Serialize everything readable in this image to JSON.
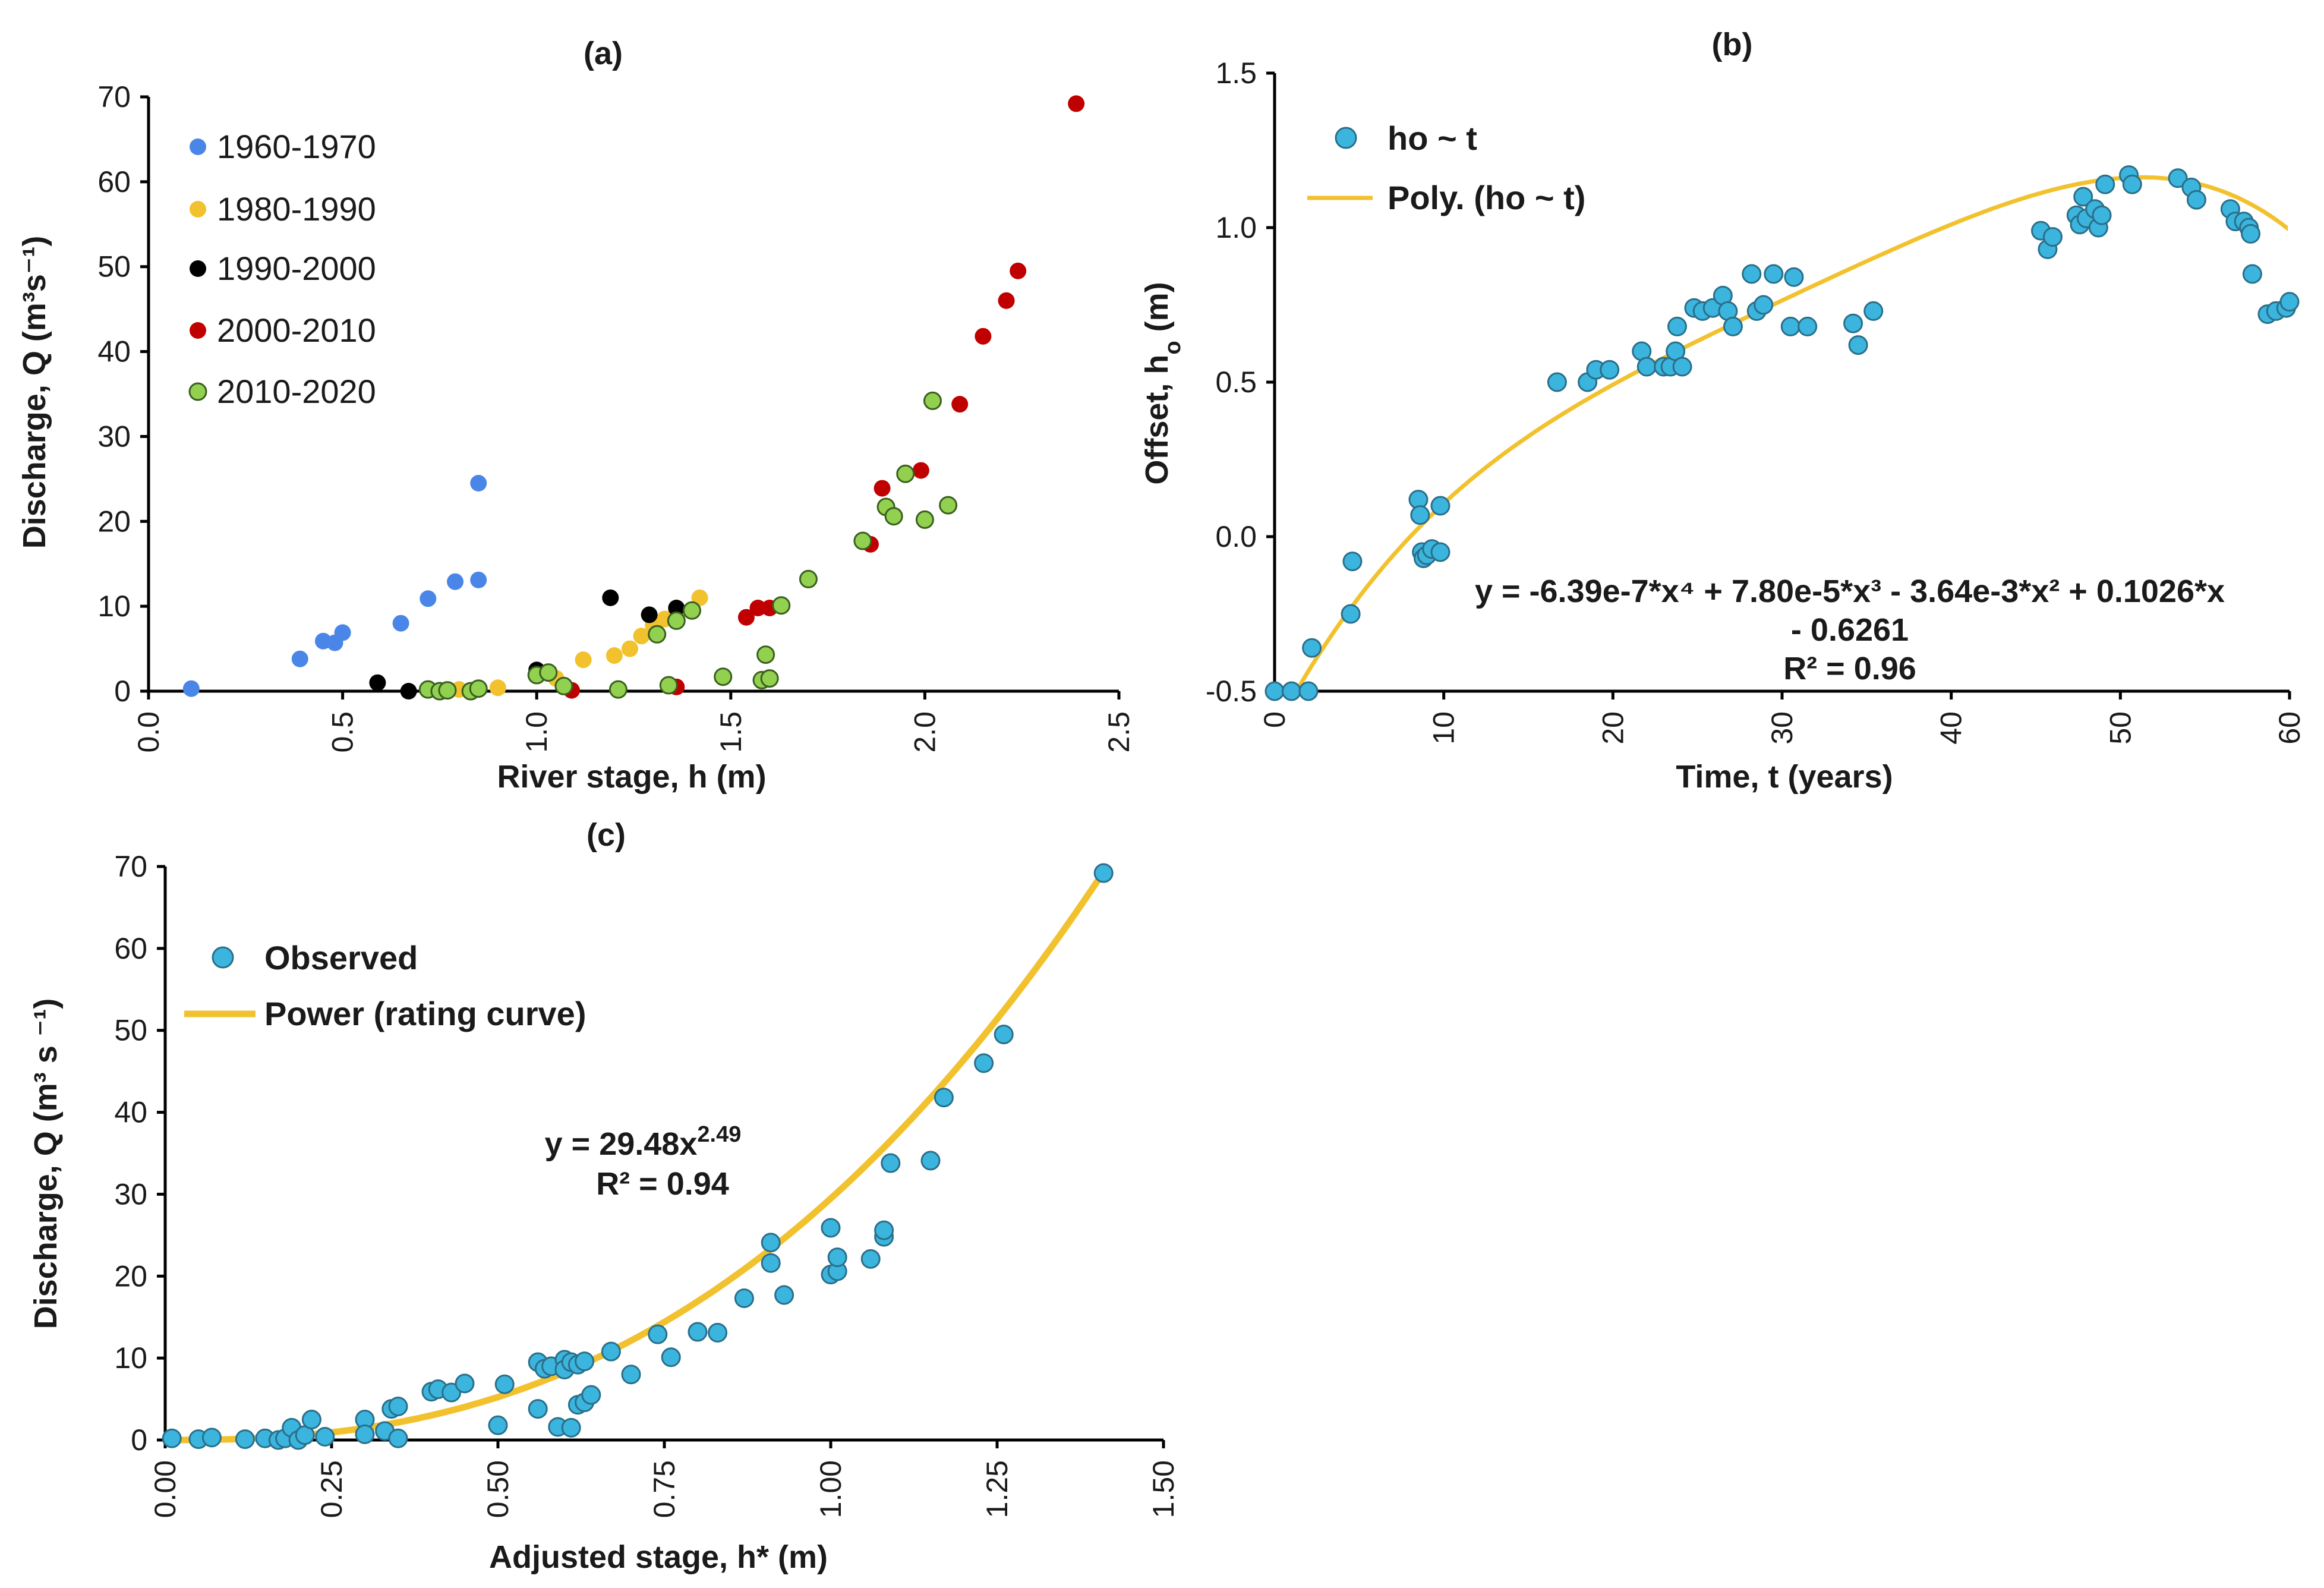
{
  "chart_data": [
    {
      "panel": "(a)",
      "type": "scatter",
      "title": "(a)",
      "xlabel": "River stage, h (m)",
      "ylabel": "Discharge, Q (m³s⁻¹)",
      "xlim": [
        0,
        2.5
      ],
      "ylim": [
        0,
        70
      ],
      "xticks": [
        "0.0",
        "0.5",
        "1.0",
        "1.5",
        "2.0",
        "2.5"
      ],
      "yticks": [
        "0",
        "10",
        "20",
        "30",
        "40",
        "50",
        "60",
        "70"
      ],
      "legend_position": "top-left",
      "series": [
        {
          "name": "1960-1970",
          "color": "#4a86e8",
          "points": [
            [
              0.11,
              0.3
            ],
            [
              0.39,
              3.8
            ],
            [
              0.45,
              5.9
            ],
            [
              0.48,
              5.7
            ],
            [
              0.5,
              6.9
            ],
            [
              0.65,
              8
            ],
            [
              0.72,
              10.9
            ],
            [
              0.79,
              12.9
            ],
            [
              0.85,
              13.1
            ],
            [
              0.85,
              24.5
            ]
          ]
        },
        {
          "name": "1980-1990",
          "color": "#f2c12e",
          "points": [
            [
              0.75,
              0.1
            ],
            [
              0.8,
              0.2
            ],
            [
              0.9,
              0.4
            ],
            [
              1.05,
              1.5
            ],
            [
              1.12,
              3.7
            ],
            [
              1.2,
              4.2
            ],
            [
              1.24,
              5
            ],
            [
              1.27,
              6.5
            ],
            [
              1.3,
              7.8
            ],
            [
              1.33,
              8.5
            ],
            [
              1.36,
              9.5
            ],
            [
              1.42,
              11
            ]
          ]
        },
        {
          "name": "1990-2000",
          "color": "#000000",
          "points": [
            [
              0.59,
              1
            ],
            [
              0.67,
              0
            ],
            [
              1.0,
              2.5
            ],
            [
              1.19,
              11
            ],
            [
              1.29,
              9
            ],
            [
              1.36,
              9.8
            ]
          ]
        },
        {
          "name": "2000-2010",
          "color": "#c00000",
          "points": [
            [
              1.09,
              0.1
            ],
            [
              1.36,
              0.5
            ],
            [
              1.54,
              8.7
            ],
            [
              1.57,
              9.8
            ],
            [
              1.6,
              9.8
            ],
            [
              1.86,
              17.3
            ],
            [
              1.89,
              23.9
            ],
            [
              1.99,
              26
            ],
            [
              2.09,
              33.8
            ],
            [
              2.15,
              41.8
            ],
            [
              2.21,
              46
            ],
            [
              2.24,
              49.5
            ],
            [
              2.39,
              69.2
            ]
          ]
        },
        {
          "name": "2010-2020",
          "color": "#92d050",
          "points": [
            [
              0.72,
              0.2
            ],
            [
              0.75,
              0
            ],
            [
              0.77,
              0.1
            ],
            [
              0.83,
              0
            ],
            [
              0.85,
              0.3
            ],
            [
              1.0,
              1.9
            ],
            [
              1.03,
              2.2
            ],
            [
              1.07,
              0.6
            ],
            [
              1.21,
              0.2
            ],
            [
              1.31,
              6.7
            ],
            [
              1.34,
              0.7
            ],
            [
              1.36,
              8.3
            ],
            [
              1.4,
              9.5
            ],
            [
              1.48,
              1.7
            ],
            [
              1.58,
              1.3
            ],
            [
              1.59,
              4.3
            ],
            [
              1.6,
              1.5
            ],
            [
              1.63,
              10.1
            ],
            [
              1.7,
              13.2
            ],
            [
              1.84,
              17.7
            ],
            [
              1.9,
              21.7
            ],
            [
              1.92,
              20.6
            ],
            [
              1.95,
              25.6
            ],
            [
              2.0,
              20.2
            ],
            [
              2.02,
              34.2
            ],
            [
              2.06,
              21.9
            ]
          ]
        }
      ]
    },
    {
      "panel": "(b)",
      "type": "scatter",
      "title": "(b)",
      "xlabel": "Time, t (years)",
      "ylabel": "Offset, h",
      "ylabel_sub": "o",
      "ylabel_unit": " (m)",
      "xlim": [
        0,
        60
      ],
      "ylim": [
        -0.5,
        1.5
      ],
      "xticks": [
        "0",
        "10",
        "20",
        "30",
        "40",
        "50",
        "60"
      ],
      "yticks": [
        "-0.5",
        "0.0",
        "0.5",
        "1.0",
        "1.5"
      ],
      "legend_position": "top-left",
      "legend": [
        "ho ~ t",
        "Poly. (ho ~ t)"
      ],
      "equation_line1": "y = -6.39e-7*x⁴ + 7.80e-5*x³ - 3.64e-3*x² + 0.1026*x",
      "equation_line2": "- 0.6261",
      "r_squared": "R² = 0.96",
      "marker_color": "#3bb5de",
      "fit_color": "#f2c12e",
      "fit_coefficients": {
        "a4": -6.39e-07,
        "a3": 7.8e-05,
        "a2": -0.00364,
        "a1": 0.1026,
        "a0": -0.6261
      },
      "points": [
        [
          0,
          -0.5
        ],
        [
          1,
          -0.5
        ],
        [
          2,
          -0.5
        ],
        [
          2.2,
          -0.36
        ],
        [
          4.5,
          -0.25
        ],
        [
          4.6,
          -0.08
        ],
        [
          8.5,
          0.12
        ],
        [
          8.6,
          0.07
        ],
        [
          8.7,
          -0.05
        ],
        [
          8.8,
          -0.07
        ],
        [
          9,
          -0.06
        ],
        [
          9.3,
          -0.04
        ],
        [
          9.8,
          -0.05
        ],
        [
          9.8,
          0.1
        ],
        [
          16.7,
          0.5
        ],
        [
          18.5,
          0.5
        ],
        [
          19,
          0.54
        ],
        [
          19.8,
          0.54
        ],
        [
          21.7,
          0.6
        ],
        [
          22,
          0.55
        ],
        [
          23,
          0.55
        ],
        [
          23.4,
          0.55
        ],
        [
          23.7,
          0.6
        ],
        [
          23.8,
          0.68
        ],
        [
          24.1,
          0.55
        ],
        [
          24.8,
          0.74
        ],
        [
          25.3,
          0.73
        ],
        [
          25.9,
          0.74
        ],
        [
          26.5,
          0.78
        ],
        [
          26.8,
          0.73
        ],
        [
          27.1,
          0.68
        ],
        [
          28.2,
          0.85
        ],
        [
          28.5,
          0.73
        ],
        [
          28.9,
          0.75
        ],
        [
          29.5,
          0.85
        ],
        [
          30.5,
          0.68
        ],
        [
          30.7,
          0.84
        ],
        [
          31.5,
          0.68
        ],
        [
          34.2,
          0.69
        ],
        [
          34.5,
          0.62
        ],
        [
          35.4,
          0.73
        ],
        [
          45.3,
          0.99
        ],
        [
          45.7,
          0.93
        ],
        [
          46,
          0.97
        ],
        [
          47.4,
          1.04
        ],
        [
          47.6,
          1.01
        ],
        [
          47.8,
          1.1
        ],
        [
          48,
          1.03
        ],
        [
          48.5,
          1.06
        ],
        [
          48.7,
          1.0
        ],
        [
          48.9,
          1.04
        ],
        [
          49.1,
          1.14
        ],
        [
          50.5,
          1.17
        ],
        [
          50.7,
          1.14
        ],
        [
          53.4,
          1.16
        ],
        [
          54.2,
          1.13
        ],
        [
          54.5,
          1.09
        ],
        [
          56.5,
          1.06
        ],
        [
          56.8,
          1.02
        ],
        [
          57.3,
          1.02
        ],
        [
          57.6,
          1.0
        ],
        [
          57.7,
          0.98
        ],
        [
          57.8,
          0.85
        ],
        [
          58.7,
          0.72
        ],
        [
          59.2,
          0.73
        ],
        [
          59.8,
          0.74
        ],
        [
          60,
          0.76
        ]
      ]
    },
    {
      "panel": "(c)",
      "type": "scatter",
      "title": "(c)",
      "xlabel": "Adjusted stage, h* (m)",
      "ylabel": "Discharge, Q (m³ s ⁻¹)",
      "xlim": [
        0,
        1.5
      ],
      "ylim": [
        0,
        70
      ],
      "xticks": [
        "0.00",
        "0.25",
        "0.50",
        "0.75",
        "1.00",
        "1.25",
        "1.50"
      ],
      "yticks": [
        "0",
        "10",
        "20",
        "30",
        "40",
        "50",
        "60",
        "70"
      ],
      "legend_position": "top-left",
      "legend": [
        "Observed",
        "Power (rating curve)"
      ],
      "equation": "y = 29.48x",
      "equation_exponent": "2.49",
      "r_squared": "R² = 0.94",
      "marker_color": "#3bb5de",
      "fit_color": "#f2c12e",
      "fit_coefficients": {
        "a": 29.48,
        "b": 2.49
      },
      "fit_range": [
        0.0,
        1.41
      ],
      "points": [
        [
          0.01,
          0.2
        ],
        [
          0.05,
          0.1
        ],
        [
          0.07,
          0.3
        ],
        [
          0.12,
          0.1
        ],
        [
          0.15,
          0.2
        ],
        [
          0.17,
          0
        ],
        [
          0.18,
          0.2
        ],
        [
          0.19,
          1.5
        ],
        [
          0.2,
          0
        ],
        [
          0.21,
          0.6
        ],
        [
          0.22,
          2.5
        ],
        [
          0.24,
          0.4
        ],
        [
          0.3,
          2.5
        ],
        [
          0.3,
          0.7
        ],
        [
          0.33,
          1.1
        ],
        [
          0.34,
          3.8
        ],
        [
          0.35,
          4.1
        ],
        [
          0.35,
          0.2
        ],
        [
          0.4,
          5.9
        ],
        [
          0.41,
          6.2
        ],
        [
          0.43,
          5.8
        ],
        [
          0.45,
          6.9
        ],
        [
          0.5,
          1.8
        ],
        [
          0.51,
          6.8
        ],
        [
          0.56,
          9.5
        ],
        [
          0.56,
          3.8
        ],
        [
          0.57,
          8.7
        ],
        [
          0.58,
          9
        ],
        [
          0.59,
          1.6
        ],
        [
          0.6,
          9.8
        ],
        [
          0.6,
          8.6
        ],
        [
          0.61,
          9.5
        ],
        [
          0.61,
          1.5
        ],
        [
          0.62,
          9.2
        ],
        [
          0.62,
          4.3
        ],
        [
          0.63,
          9.6
        ],
        [
          0.63,
          4.6
        ],
        [
          0.64,
          5.5
        ],
        [
          0.67,
          10.8
        ],
        [
          0.7,
          8
        ],
        [
          0.74,
          12.9
        ],
        [
          0.76,
          10.1
        ],
        [
          0.8,
          13.2
        ],
        [
          0.83,
          13.1
        ],
        [
          0.87,
          17.3
        ],
        [
          0.91,
          24.1
        ],
        [
          0.91,
          21.6
        ],
        [
          0.93,
          17.7
        ],
        [
          1.0,
          20.2
        ],
        [
          1.0,
          25.9
        ],
        [
          1.01,
          20.6
        ],
        [
          1.01,
          22.3
        ],
        [
          1.06,
          22.1
        ],
        [
          1.08,
          24.8
        ],
        [
          1.08,
          25.6
        ],
        [
          1.09,
          33.8
        ],
        [
          1.15,
          34.1
        ],
        [
          1.17,
          41.8
        ],
        [
          1.23,
          46
        ],
        [
          1.26,
          49.5
        ],
        [
          1.41,
          69.2
        ]
      ]
    }
  ]
}
